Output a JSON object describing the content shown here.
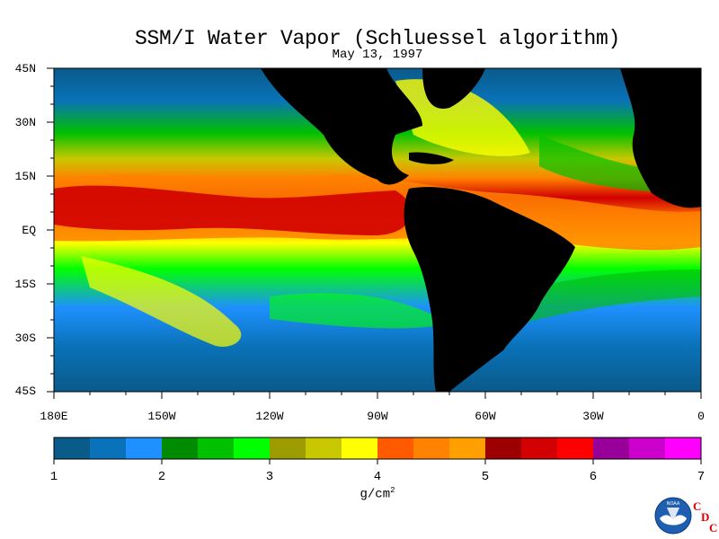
{
  "title": "SSM/I Water Vapor (Schluessel algorithm)",
  "date": "May 13, 1997",
  "lat_labels": [
    "45N",
    "30N",
    "15N",
    "EQ",
    "15S",
    "30S",
    "45S"
  ],
  "lon_labels": [
    "180E",
    "150W",
    "120W",
    "90W",
    "60W",
    "30W",
    "0"
  ],
  "colorbar": {
    "labels": [
      "1",
      "2",
      "3",
      "4",
      "5",
      "6",
      "7"
    ],
    "units_base": "g/cm",
    "units_exp": "2",
    "colors": [
      "#0a5a8a",
      "#0a72b8",
      "#1e90ff",
      "#008b00",
      "#00c000",
      "#00ff00",
      "#9c9c00",
      "#c8c800",
      "#ffff00",
      "#ff5a00",
      "#ff8200",
      "#ffa000",
      "#9c0000",
      "#d20000",
      "#ff0000",
      "#990099",
      "#cc00cc",
      "#ff00ff"
    ]
  },
  "map": {
    "land_color": "#000000"
  },
  "logo": {
    "label": "NOAA",
    "cdc": [
      "C",
      "D",
      "C"
    ]
  }
}
